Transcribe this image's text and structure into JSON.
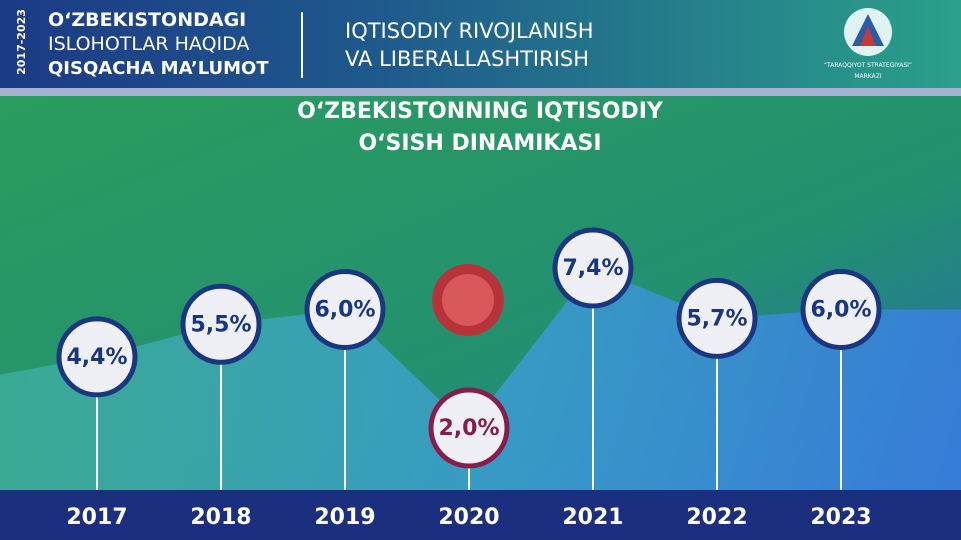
{
  "header": {
    "years": "2017-2023",
    "title_lines": [
      "O‘ZBEKISTONDAGI",
      "ISLOHOTLAR HAQIDA",
      "QISQACHA MA’LUMOT"
    ],
    "topic_lines": [
      "IQTISODIY RIVOJLANISH",
      "VA LIBERALLASHTIRISH"
    ],
    "logo_lines": [
      "“TARAQQIYOT STRATEGIYASI”",
      "MARKAZI"
    ]
  },
  "chart_data": {
    "type": "line",
    "title_lines": [
      "O‘ZBEKISTONNING IQTISODIY",
      "O‘SISH DINAMIKASI"
    ],
    "categories": [
      "2017",
      "2018",
      "2019",
      "2020",
      "2021",
      "2022",
      "2023"
    ],
    "values": [
      4.4,
      5.5,
      6.0,
      2.0,
      7.4,
      5.7,
      6.0
    ],
    "value_labels": [
      "4,4%",
      "5,5%",
      "6,0%",
      "2,0%",
      "7,4%",
      "5,7%",
      "6,0%"
    ],
    "color": "#1b3680",
    "point_colors": [
      "#1b3680",
      "#1b3680",
      "#1b3680",
      "#8a1c4a",
      "#1b3680",
      "#1b3680",
      "#1b3680"
    ]
  }
}
